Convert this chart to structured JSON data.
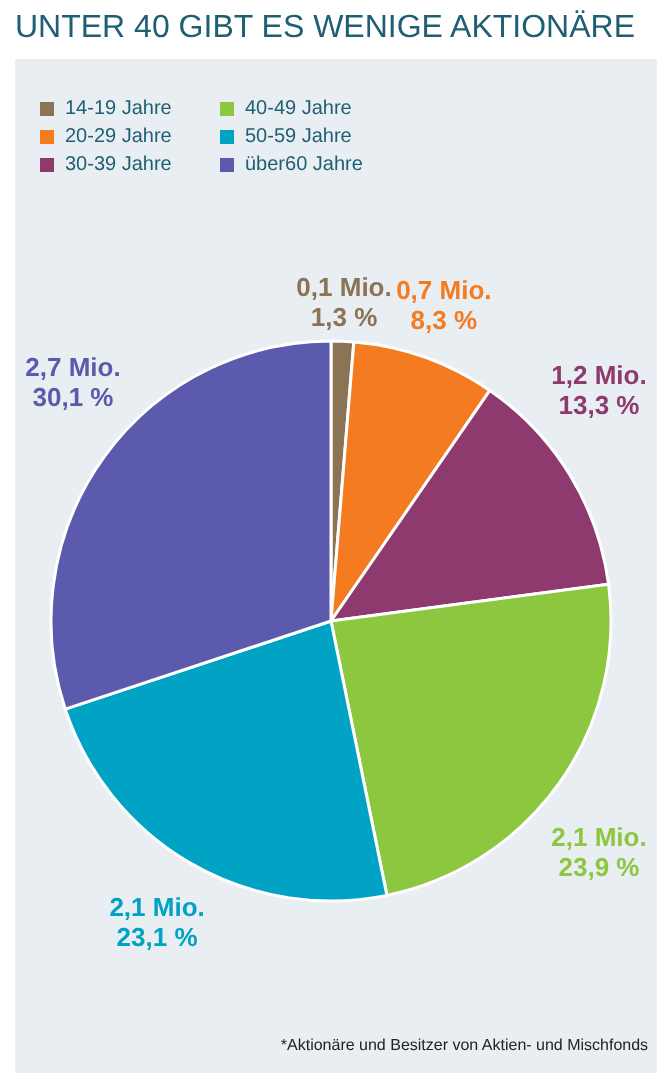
{
  "chart_data": {
    "type": "pie",
    "title": "UNTER 40 GIBT ES WENIGE AKTIONÄRE",
    "categories": [
      "14-19  Jahre",
      "20-29  Jahre",
      "30-39  Jahre",
      "40-49  Jahre",
      "50-59  Jahre",
      "über60 Jahre"
    ],
    "values": [
      1.3,
      8.3,
      13.3,
      23.9,
      23.1,
      30.1
    ],
    "colors": [
      "#8b7355",
      "#f47b20",
      "#8e3a6e",
      "#8dc63f",
      "#00a3c4",
      "#5b5aad"
    ],
    "value_labels": [
      "0,1 Mio.\n1,3 %",
      "0,7 Mio.\n8,3 %",
      "1,2 Mio.\n13,3 %",
      "2,1 Mio.\n23,9 %",
      "2,1 Mio.\n23,1 %",
      "2,7 Mio.\n30,1 %"
    ],
    "legend": "top left",
    "annotations": [
      "*Aktionäre und Besitzer von Aktien- und Mischfonds"
    ]
  }
}
